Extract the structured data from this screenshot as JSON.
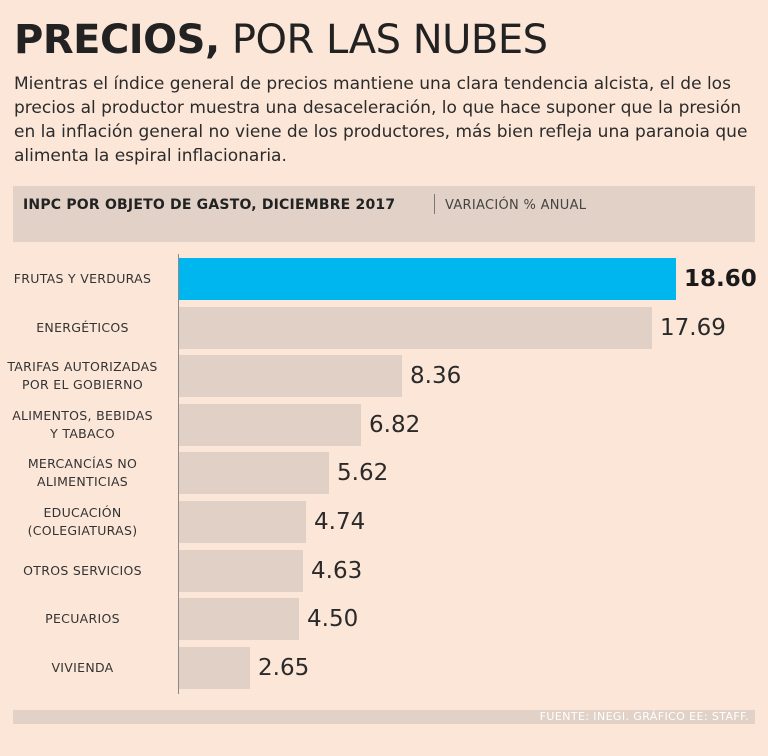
{
  "header": {
    "title_bold": "PRECIOS,",
    "title_light": "POR LAS NUBES",
    "intro": "Mientras el índice general de precios mantiene una clara tendencia alcista, el de los precios al productor muestra una desaceleración, lo que hace suponer que la presión en la inflación general no viene de los productores, más bien refleja una paranoia que alimenta la espiral inflacionaria."
  },
  "chart_header": {
    "title": "INPC POR OBJETO DE GASTO, DICIEMBRE 2017",
    "subtitle": "VARIACIÓN % ANUAL"
  },
  "colors": {
    "highlight": "#00b6ee",
    "bar": "#e0d0c5",
    "background": "#fbe6d8"
  },
  "chart_data": {
    "type": "bar",
    "orientation": "horizontal",
    "title": "INPC POR OBJETO DE GASTO, DICIEMBRE 2017",
    "xlabel": "VARIACIÓN % ANUAL",
    "ylabel": "",
    "xlim": [
      0,
      18.6
    ],
    "highlight_index": 0,
    "categories": [
      "FRUTAS Y VERDURAS",
      "ENERGÉTICOS",
      "TARIFAS AUTORIZADAS POR EL GOBIERNO",
      "ALIMENTOS, BEBIDAS Y TABACO",
      "MERCANCÍAS NO ALIMENTICIAS",
      "EDUCACIÓN (COLEGIATURAS)",
      "OTROS SERVICIOS",
      "PECUARIOS",
      "VIVIENDA"
    ],
    "category_lines": [
      [
        "FRUTAS Y VERDURAS"
      ],
      [
        "ENERGÉTICOS"
      ],
      [
        "TARIFAS AUTORIZADAS",
        "POR EL GOBIERNO"
      ],
      [
        "ALIMENTOS, BEBIDAS",
        "Y TABACO"
      ],
      [
        "MERCANCÍAS NO",
        "ALIMENTICIAS"
      ],
      [
        "EDUCACIÓN",
        "(COLEGIATURAS)"
      ],
      [
        "OTROS SERVICIOS"
      ],
      [
        "PECUARIOS"
      ],
      [
        "VIVIENDA"
      ]
    ],
    "values": [
      18.6,
      17.69,
      8.36,
      6.82,
      5.62,
      4.74,
      4.63,
      4.5,
      2.65
    ],
    "value_labels": [
      "18.60",
      "17.69",
      "8.36",
      "6.82",
      "5.62",
      "4.74",
      "4.63",
      "4.50",
      "2.65"
    ]
  },
  "footer": {
    "source": "FUENTE: INEGI. GRÁFICO EE: STAFF."
  }
}
